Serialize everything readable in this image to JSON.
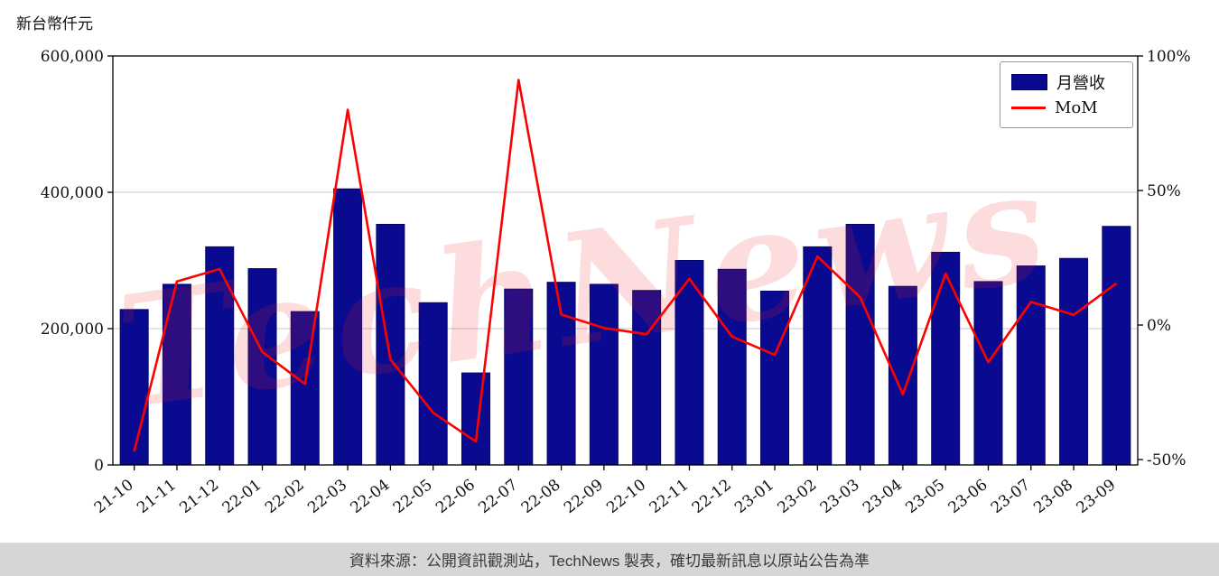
{
  "page": {
    "unit_label": "新台幣仟元",
    "watermark": "TechNews",
    "footer": "資料來源：公開資訊觀測站，TechNews 製表，確切最新訊息以原站公告為準"
  },
  "legend": {
    "bar_label": "月營收",
    "line_label": "MoM"
  },
  "colors": {
    "bar_fill": "#0a0a91",
    "bar_edge": "#050568",
    "line": "#ff0000",
    "grid": "#c9c9c9",
    "axis": "#000000"
  },
  "chart_data": {
    "type": "bar",
    "title": "",
    "categories": [
      "21-10",
      "21-11",
      "21-12",
      "22-01",
      "22-02",
      "22-03",
      "22-04",
      "22-05",
      "22-06",
      "22-07",
      "22-08",
      "22-09",
      "22-10",
      "22-11",
      "22-12",
      "23-01",
      "23-02",
      "23-03",
      "23-04",
      "23-05",
      "23-06",
      "23-07",
      "23-08",
      "23-09"
    ],
    "series": [
      {
        "name": "月營收",
        "type": "bar",
        "axis": "left",
        "unit": "新台幣仟元",
        "values": [
          228000,
          265000,
          320000,
          288000,
          225000,
          405000,
          353000,
          238000,
          135000,
          258000,
          268000,
          265000,
          256000,
          300000,
          287000,
          255000,
          320000,
          353000,
          262000,
          312000,
          269000,
          292000,
          303000,
          350000
        ]
      },
      {
        "name": "MoM",
        "type": "line",
        "axis": "right",
        "unit": "%",
        "values": [
          -47.0,
          16.2,
          20.8,
          -10.0,
          -21.9,
          80.0,
          -12.8,
          -32.6,
          -43.3,
          91.1,
          3.9,
          -1.1,
          -3.4,
          17.2,
          -4.3,
          -11.1,
          25.5,
          10.3,
          -25.8,
          19.1,
          -13.8,
          8.6,
          3.8,
          15.5
        ]
      }
    ],
    "left_axis": {
      "ylim": [
        0,
        600000
      ],
      "tick_values": [
        0,
        200000,
        400000,
        600000
      ],
      "tick_labels": [
        "0",
        "200,000",
        "400,000",
        "600,000"
      ]
    },
    "right_axis": {
      "ylim": [
        -52,
        100
      ],
      "tick_values": [
        -50,
        0,
        50,
        100
      ],
      "tick_labels": [
        "-50%",
        "0%",
        "50%",
        "100%"
      ]
    },
    "grid": true,
    "legend_position": "top-right"
  }
}
